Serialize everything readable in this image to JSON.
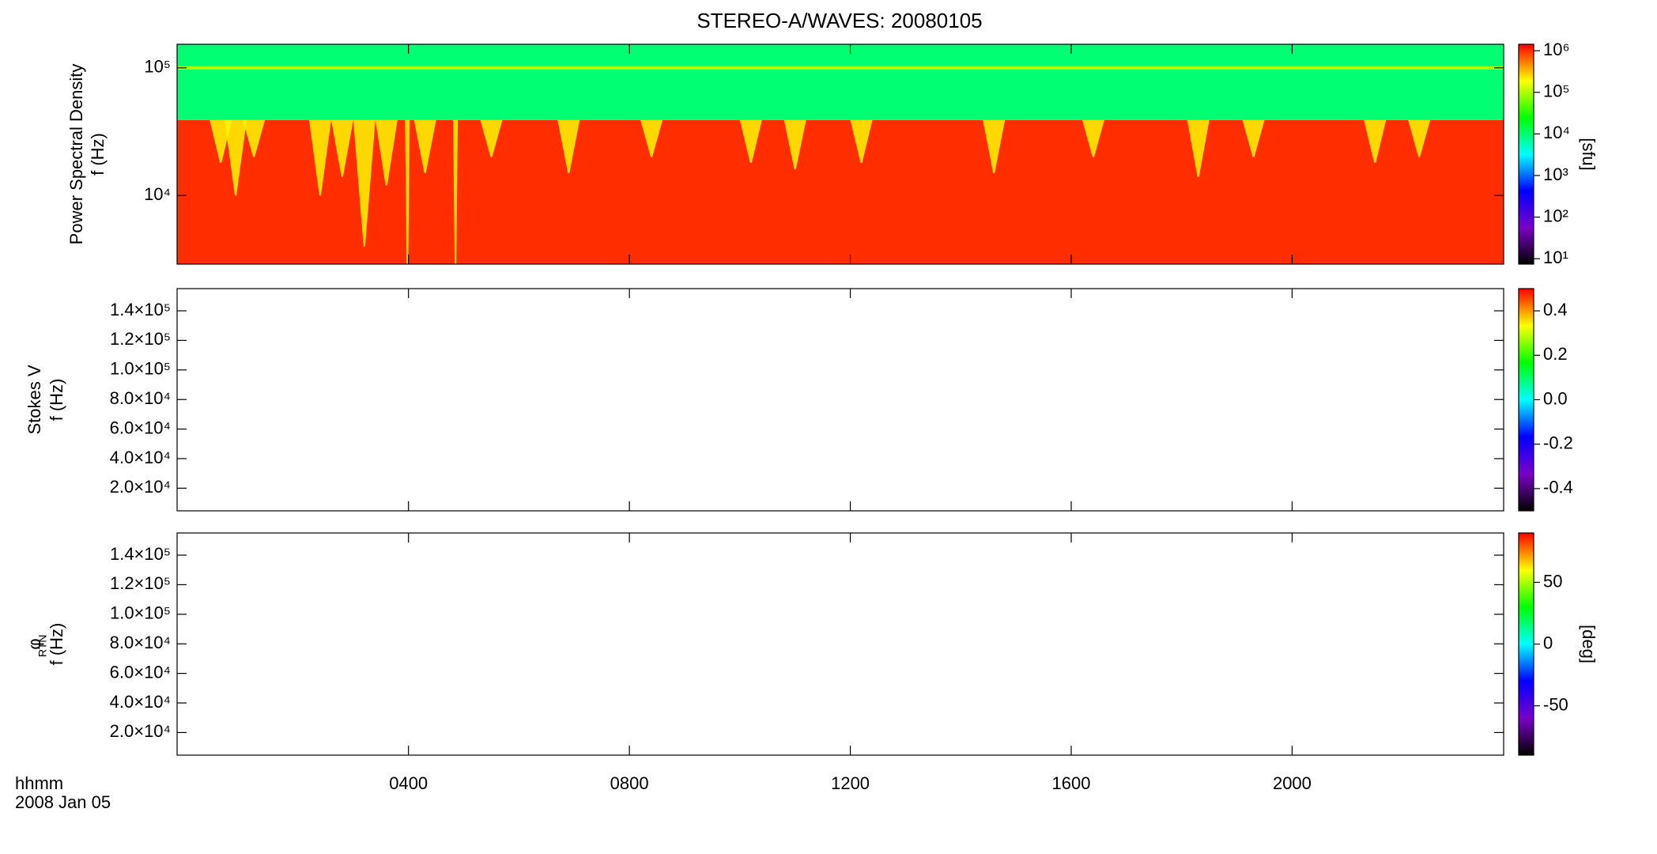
{
  "chart_data": {
    "type": "spectrogram",
    "title": "STEREO-A/WAVES: 20080105",
    "xlim": [
      -0.19,
      23.83
    ],
    "xticks": [
      {
        "value": 4,
        "label": "0400"
      },
      {
        "value": 8,
        "label": "0800"
      },
      {
        "value": 12,
        "label": "1200"
      },
      {
        "value": 16,
        "label": "1600"
      },
      {
        "value": 20,
        "label": "2000"
      }
    ],
    "xlabel": "hhmm",
    "xsublabel": "2008 Jan 05",
    "colormap": [
      "#000000",
      "#7a00c8",
      "#0000ff",
      "#00ffff",
      "#00ff00",
      "#ffff00",
      "#ff0000"
    ],
    "panels": [
      {
        "ylabel": [
          "Power Spectral Density",
          "f (Hz)"
        ],
        "ylog": true,
        "ylim": [
          2900,
          153000
        ],
        "yticks": [
          {
            "value": 10000,
            "label": "10⁴"
          },
          {
            "value": 100000,
            "label": "10⁵"
          }
        ],
        "zlabel": "[sfu]",
        "zlog": true,
        "zlim": [
          7.4,
          1430000
        ],
        "zticks": [
          {
            "value": 10,
            "label": "10¹"
          },
          {
            "value": 100,
            "label": "10²"
          },
          {
            "value": 1000,
            "label": "10³"
          },
          {
            "value": 10000,
            "label": "10⁴"
          },
          {
            "value": 100000,
            "label": "10⁵"
          },
          {
            "value": 1000000,
            "label": "10⁶"
          }
        ],
        "bands": [
          {
            "range": [
              2900,
              39000
            ],
            "value": 1000000
          },
          {
            "range": [
              39000,
              153000
            ],
            "value": 10000
          },
          {
            "range": [
              97000,
              103000
            ],
            "value": 100000
          }
        ],
        "fingers": [
          {
            "x": 0.6,
            "f": 18000,
            "value": 200000
          },
          {
            "x": 0.87,
            "f": 10000,
            "value": 200000
          },
          {
            "x": 1.2,
            "f": 20000,
            "value": 200000
          },
          {
            "x": 2.4,
            "f": 10000,
            "value": 200000
          },
          {
            "x": 2.8,
            "f": 14000,
            "value": 200000
          },
          {
            "x": 3.2,
            "f": 4000,
            "value": 200000
          },
          {
            "x": 3.6,
            "f": 12000,
            "value": 200000
          },
          {
            "x": 3.98,
            "f": 2900,
            "value": 200000
          },
          {
            "x": 4.3,
            "f": 15000,
            "value": 200000
          },
          {
            "x": 4.85,
            "f": 2900,
            "value": 200000
          },
          {
            "x": 5.5,
            "f": 20000,
            "value": 200000
          },
          {
            "x": 6.9,
            "f": 15000,
            "value": 200000
          },
          {
            "x": 8.4,
            "f": 20000,
            "value": 200000
          },
          {
            "x": 10.2,
            "f": 18000,
            "value": 200000
          },
          {
            "x": 11.0,
            "f": 16000,
            "value": 200000
          },
          {
            "x": 12.2,
            "f": 18000,
            "value": 200000
          },
          {
            "x": 14.6,
            "f": 15000,
            "value": 200000
          },
          {
            "x": 16.4,
            "f": 20000,
            "value": 200000
          },
          {
            "x": 18.3,
            "f": 14000,
            "value": 200000
          },
          {
            "x": 19.3,
            "f": 20000,
            "value": 200000
          },
          {
            "x": 21.5,
            "f": 18000,
            "value": 200000
          },
          {
            "x": 22.3,
            "f": 20000,
            "value": 200000
          }
        ]
      },
      {
        "ylabel": [
          "Stokes V",
          "f (Hz)"
        ],
        "ylim": [
          4700,
          155000
        ],
        "yticks": [
          {
            "value": 20000,
            "label": "2.0×10⁴"
          },
          {
            "value": 40000,
            "label": "4.0×10⁴"
          },
          {
            "value": 60000,
            "label": "6.0×10⁴"
          },
          {
            "value": 80000,
            "label": "8.0×10⁴"
          },
          {
            "value": 100000,
            "label": "1.0×10⁵"
          },
          {
            "value": 120000,
            "label": "1.2×10⁵"
          },
          {
            "value": 140000,
            "label": "1.4×10⁵"
          }
        ],
        "zlim": [
          -0.5,
          0.5
        ],
        "zticks": [
          -0.4,
          -0.2,
          {
            "value": 0,
            "label": "0.0"
          },
          0.2,
          0.4
        ]
      },
      {
        "ylabel": [
          "φ",
          "f (Hz)"
        ],
        "ylabel_sub": "RTN",
        "ylim": [
          4700,
          155000
        ],
        "yticks": [
          {
            "value": 20000,
            "label": "2.0×10⁴"
          },
          {
            "value": 40000,
            "label": "4.0×10⁴"
          },
          {
            "value": 60000,
            "label": "6.0×10⁴"
          },
          {
            "value": 80000,
            "label": "8.0×10⁴"
          },
          {
            "value": 100000,
            "label": "1.0×10⁵"
          },
          {
            "value": 120000,
            "label": "1.2×10⁵"
          },
          {
            "value": 140000,
            "label": "1.4×10⁵"
          }
        ],
        "zlabel": "[deg]",
        "zlim": [
          -90,
          90
        ],
        "zticks": [
          -50,
          0,
          50
        ]
      }
    ]
  }
}
